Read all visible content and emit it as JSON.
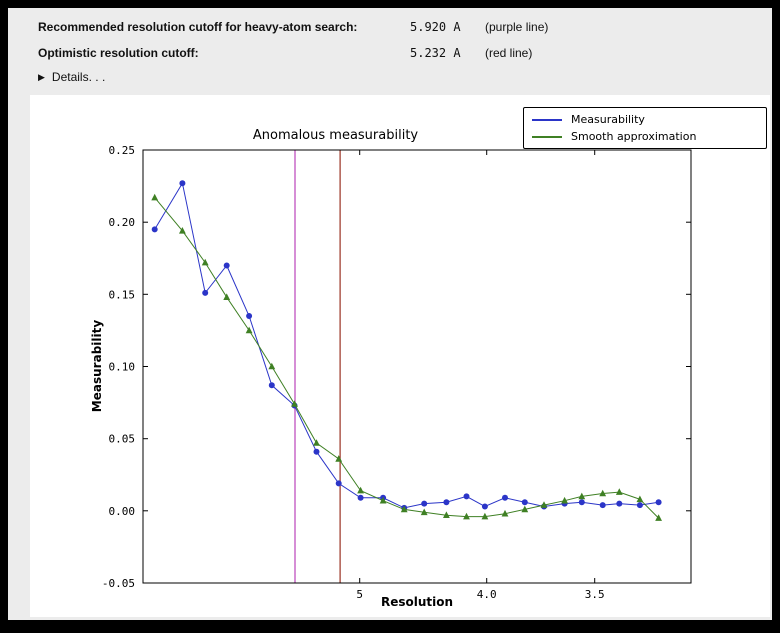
{
  "window": {
    "frame_color": "#000000",
    "panel_bg": "#ececec"
  },
  "header": {
    "rows": [
      {
        "label": "Recommended resolution cutoff for heavy-atom search:",
        "value": "5.920 A",
        "note": "(purple line)"
      },
      {
        "label": "Optimistic resolution cutoff:",
        "value": "5.232 A",
        "note": "(red line)"
      }
    ],
    "details_label": "Details. . ."
  },
  "chart_data": {
    "type": "line",
    "title": "Anomalous measurability",
    "xlabel": "Resolution",
    "ylabel": "Measurability",
    "x_axis_scale": "1/d^2",
    "x_range_inv_d2": [
      0.0016,
      0.0987
    ],
    "x_ticks": [
      {
        "label": "5",
        "d": 5.0
      },
      {
        "label": "4.0",
        "d": 4.0
      },
      {
        "label": "3.5",
        "d": 3.5
      }
    ],
    "ylim": [
      -0.05,
      0.25
    ],
    "yticks": [
      0.25,
      0.2,
      0.15,
      0.1,
      0.05,
      0.0,
      -0.05
    ],
    "resolution_A": [
      16.5,
      10.8,
      8.9,
      7.8,
      7.0,
      6.4,
      5.93,
      5.56,
      5.25,
      4.99,
      4.76,
      4.57,
      4.41,
      4.25,
      4.12,
      4.01,
      3.9,
      3.8,
      3.71,
      3.62,
      3.55,
      3.47,
      3.41,
      3.34,
      3.28
    ],
    "series": [
      {
        "name": "Measurability",
        "color": "#2b35c8",
        "marker": "circle",
        "values": [
          0.195,
          0.227,
          0.151,
          0.17,
          0.135,
          0.087,
          0.073,
          0.041,
          0.019,
          0.009,
          0.009,
          0.002,
          0.005,
          0.006,
          0.01,
          0.003,
          0.009,
          0.006,
          0.003,
          0.005,
          0.006,
          0.004,
          0.005,
          0.004,
          0.006
        ]
      },
      {
        "name": "Smooth approximation",
        "color": "#3f8024",
        "marker": "triangle",
        "values": [
          0.217,
          0.194,
          0.172,
          0.148,
          0.125,
          0.1,
          0.074,
          0.047,
          0.036,
          0.014,
          0.007,
          0.001,
          -0.001,
          -0.003,
          -0.004,
          -0.004,
          -0.002,
          0.001,
          0.004,
          0.007,
          0.01,
          0.012,
          0.013,
          0.008,
          -0.005
        ]
      }
    ],
    "vlines": [
      {
        "resolution_A": 5.92,
        "color": "#bb44bb",
        "name": "purple line"
      },
      {
        "resolution_A": 5.232,
        "color": "#993122",
        "name": "red line"
      }
    ],
    "legend_position": "top-right",
    "grid": false
  }
}
